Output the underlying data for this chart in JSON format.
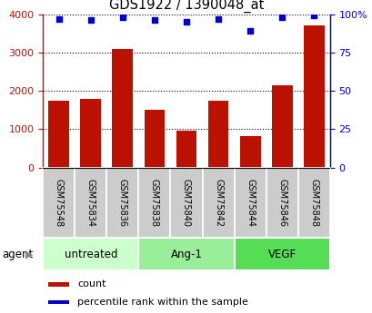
{
  "title": "GDS1922 / 1390048_at",
  "samples": [
    "GSM75548",
    "GSM75834",
    "GSM75836",
    "GSM75838",
    "GSM75840",
    "GSM75842",
    "GSM75844",
    "GSM75846",
    "GSM75848"
  ],
  "counts": [
    1750,
    1800,
    3100,
    1500,
    950,
    1750,
    820,
    2150,
    3700
  ],
  "percentiles": [
    97,
    96,
    98,
    96,
    95,
    97,
    89,
    98,
    99
  ],
  "groups": [
    {
      "label": "untreated",
      "indices": [
        0,
        1,
        2
      ],
      "color": "#ccffcc"
    },
    {
      "label": "Ang-1",
      "indices": [
        3,
        4,
        5
      ],
      "color": "#99ee99"
    },
    {
      "label": "VEGF",
      "indices": [
        6,
        7,
        8
      ],
      "color": "#55dd55"
    }
  ],
  "bar_color": "#bb1100",
  "dot_color": "#0000cc",
  "left_axis_color": "#bb1100",
  "right_axis_color": "#0000cc",
  "ylim_left": [
    0,
    4000
  ],
  "ylim_right": [
    0,
    100
  ],
  "left_ticks": [
    0,
    1000,
    2000,
    3000,
    4000
  ],
  "right_tick_labels": [
    "0",
    "25",
    "50",
    "75",
    "100%"
  ],
  "sample_box_color": "#cccccc",
  "legend_count_label": "count",
  "legend_pct_label": "percentile rank within the sample",
  "agent_label": "agent"
}
